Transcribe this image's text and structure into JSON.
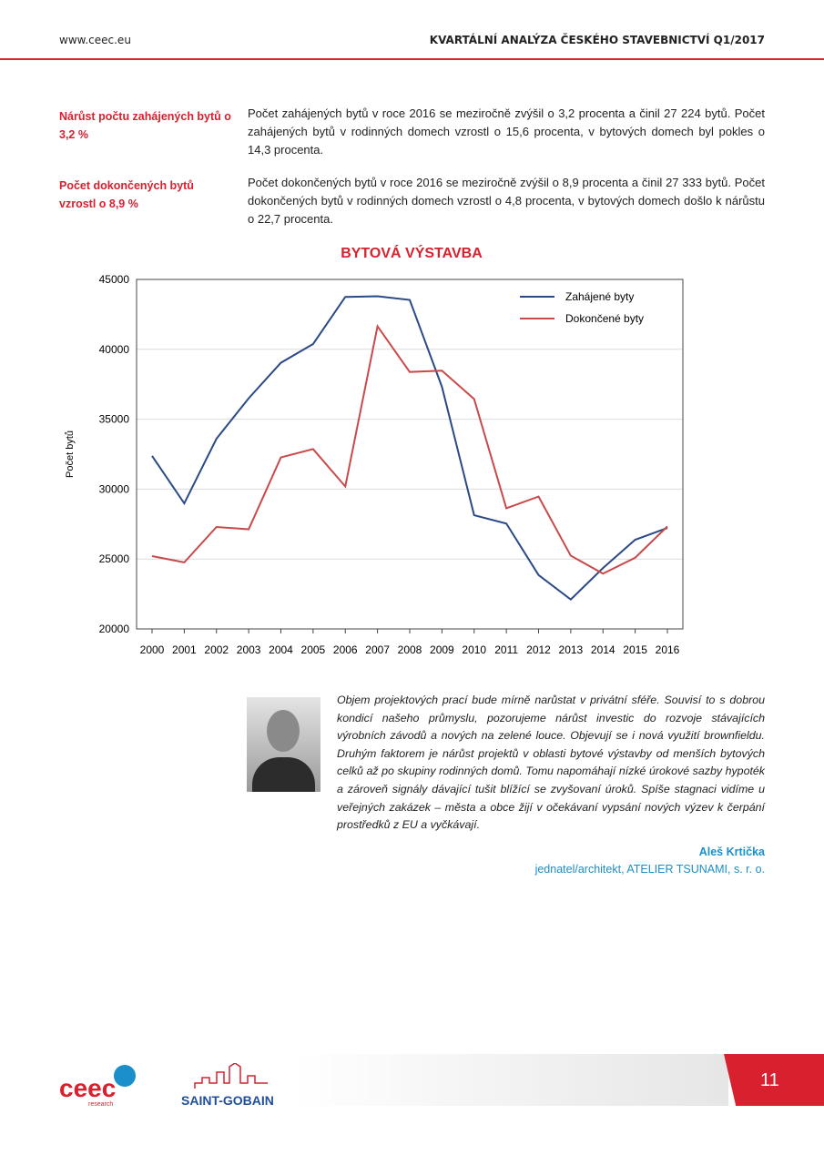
{
  "header": {
    "site": "www.ceec.eu",
    "title": "KVARTÁLNÍ ANALÝZA ČESKÉHO STAVEBNICTVÍ Q1/2017"
  },
  "sections": [
    {
      "heading": "Nárůst počtu zahájených bytů o 3,2 %",
      "text": "Počet zahájených bytů v roce 2016 se meziročně zvýšil o 3,2 procenta a činil 27 224 bytů. Počet zahájených bytů v rodinných domech vzrostl o 15,6 procenta, v bytových domech byl pokles o 14,3 procenta."
    },
    {
      "heading": "Počet dokončených bytů vzrostl o 8,9 %",
      "text": "Počet dokončených bytů v roce 2016 se meziročně zvýšil o 8,9 procenta a činil 27 333 bytů. Počet dokončených bytů v rodinných domech vzrostl o 4,8 procenta, v bytových domech došlo k nárůstu o 22,7 procenta."
    }
  ],
  "chart_data": {
    "type": "line",
    "title": "BYTOVÁ VÝSTAVBA",
    "y_label": "Počet bytů",
    "categories": [
      "2000",
      "2001",
      "2002",
      "2003",
      "2004",
      "2005",
      "2006",
      "2007",
      "2008",
      "2009",
      "2010",
      "2011",
      "2012",
      "2013",
      "2014",
      "2015",
      "2016"
    ],
    "series": [
      {
        "name": "Zahájené byty",
        "color": "#2a4a86",
        "values": [
          32377,
          28983,
          33606,
          36496,
          39037,
          40381,
          43747,
          43796,
          43531,
          37319,
          28135,
          27535,
          23853,
          22108,
          24351,
          26378,
          27224
        ]
      },
      {
        "name": "Dokončené byty",
        "color": "#c84a4a",
        "values": [
          25207,
          24759,
          27291,
          27127,
          32268,
          32863,
          30190,
          41649,
          38380,
          38473,
          36442,
          28630,
          29467,
          25238,
          23954,
          25095,
          27333
        ]
      }
    ],
    "ylim": [
      20000,
      45000
    ],
    "yticks": [
      20000,
      25000,
      30000,
      35000,
      40000,
      45000
    ],
    "grid": true,
    "legend": "upper right"
  },
  "quote": {
    "text": "Objem projektových prací bude mírně narůstat v privátní sféře. Souvisí to s dobrou kondicí našeho průmyslu, pozorujeme nárůst investic do rozvoje stávajících výrobních závodů a nových na zelené louce. Objevují se i nová využití brownfieldu. Druhým faktorem je nárůst projektů v oblasti bytové výstavby od menších bytových celků až po skupiny rodinných domů. Tomu napomáhají nízké úrokové sazby hypoték a zároveň signály dávající tušit blížící se zvyšovaní úroků. Spíše stagnaci vidíme u veřejných zakázek – města a obce žijí v očekávaní vypsání nových výzev k čerpání prostředků z EU a vyčkávají.",
    "author": "Aleš Krtička",
    "role": "jednatel/architekt, ATELIER TSUNAMI, s. r. o."
  },
  "footer": {
    "logo1": "ceec",
    "logo1_sub": "research",
    "logo2": "SAINT-GOBAIN",
    "page": "11"
  }
}
